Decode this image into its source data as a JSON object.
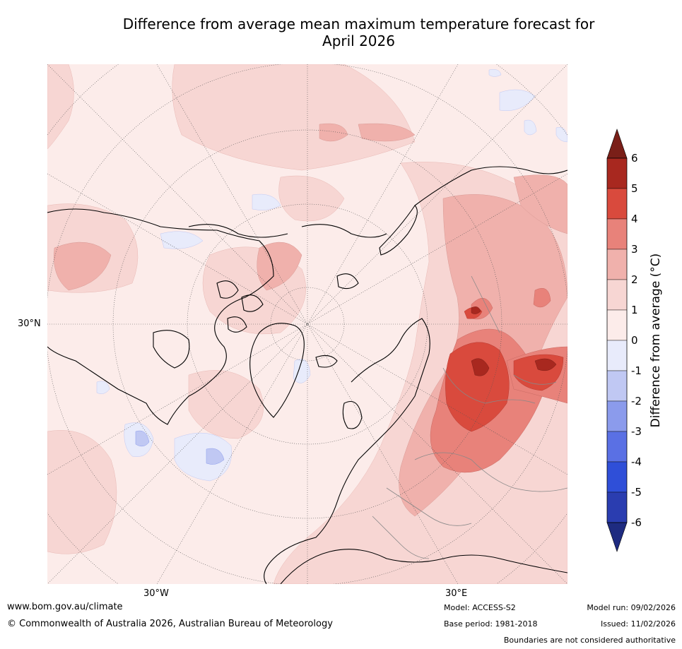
{
  "title": {
    "line1": "Difference from average mean maximum temperature forecast for",
    "line2": "April 2026"
  },
  "map": {
    "projection": "North polar stereographic",
    "lat_label": "30°N",
    "lon_labels": [
      "30°W",
      "30°E"
    ]
  },
  "colorbar": {
    "title": "Difference from average (°C)",
    "levels": [
      6,
      5,
      4,
      3,
      2,
      1,
      0,
      -1,
      -2,
      -3,
      -4,
      -5,
      -6
    ],
    "colors": [
      "#a8281f",
      "#d94a3d",
      "#e8827a",
      "#f0b1ac",
      "#f7d6d3",
      "#fcecea",
      "#e8ebfb",
      "#c0c8f3",
      "#8b9bec",
      "#5a70e4",
      "#2f4fd8",
      "#2a3db0"
    ],
    "over_color": "#7a1f18",
    "under_color": "#1e2b80"
  },
  "footer": {
    "url": "www.bom.gov.au/climate",
    "copyright": "© Commonwealth of Australia 2026, Australian Bureau of Meteorology",
    "model": "Model: ACCESS-S2",
    "model_run": "Model run: 09/02/2026",
    "base_period": "Base period: 1981-2018",
    "issued": "Issued: 11/02/2026",
    "disclaimer": "Boundaries are not considered authoritative"
  }
}
